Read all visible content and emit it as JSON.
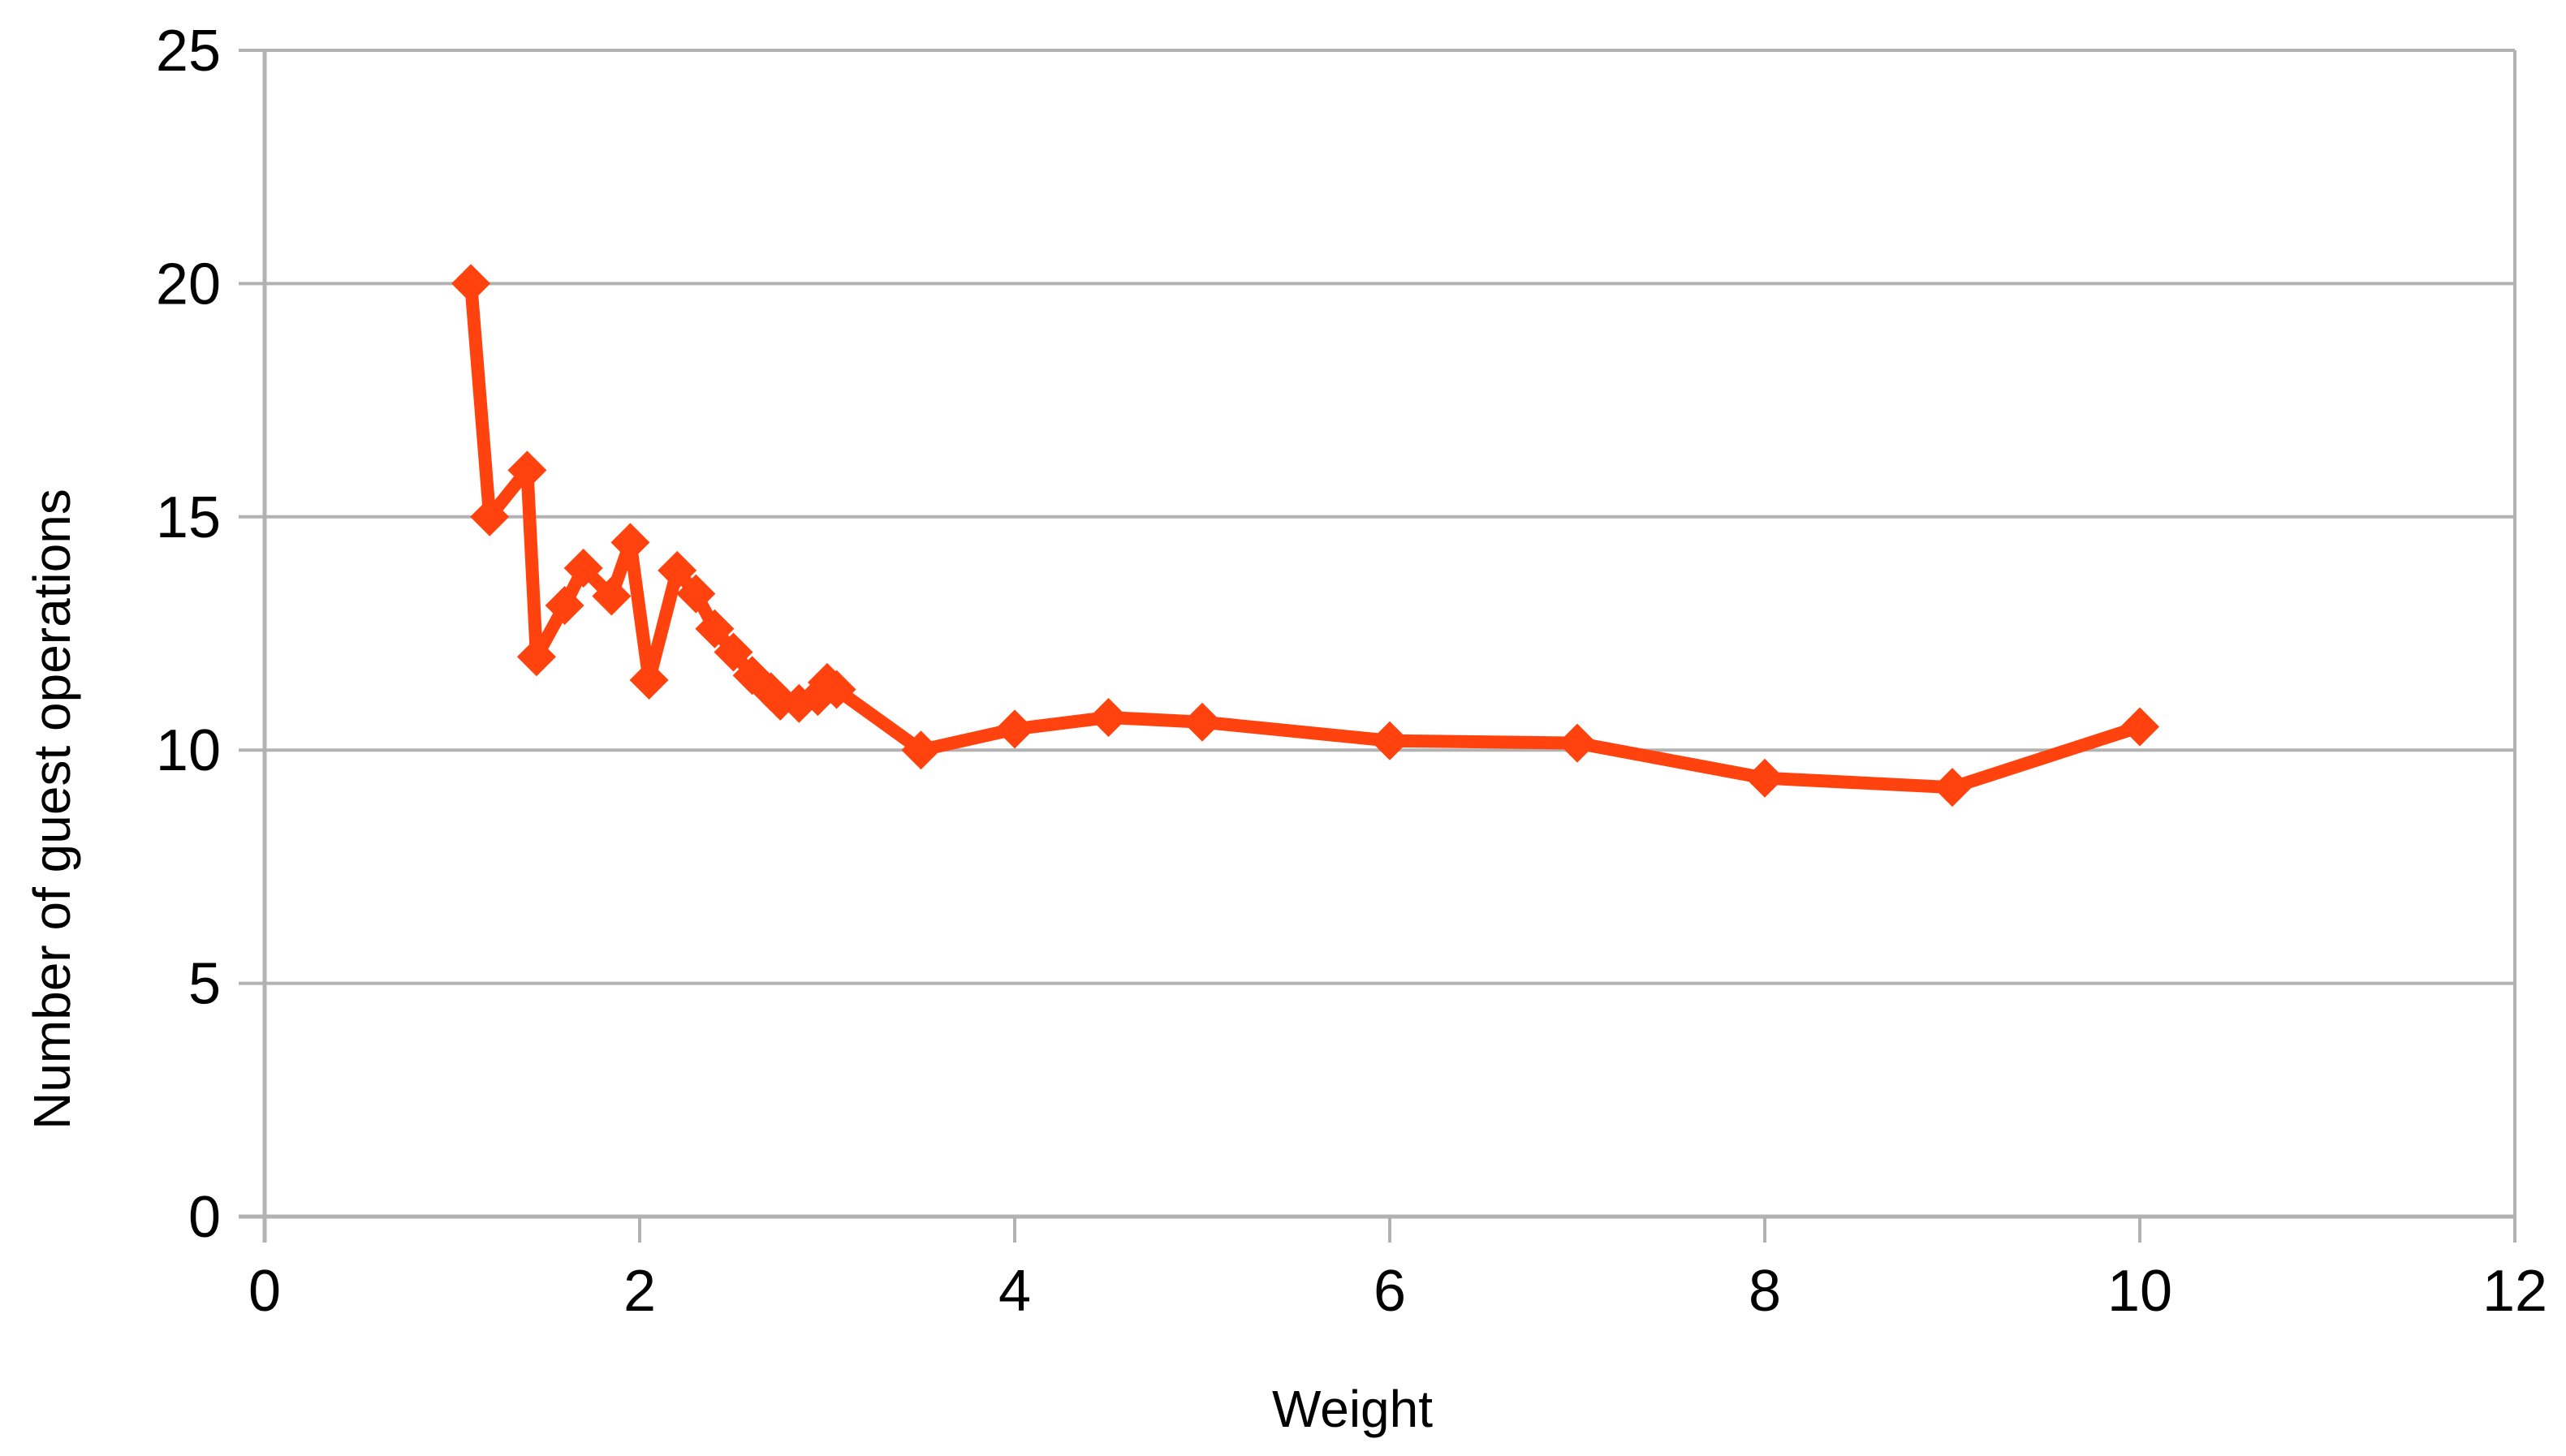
{
  "chart_data": {
    "type": "line",
    "title": "",
    "xlabel": "Weight",
    "ylabel": "Number of guest operations",
    "xlim": [
      0,
      12
    ],
    "ylim": [
      0,
      25
    ],
    "x_ticks": [
      0,
      2,
      4,
      6,
      8,
      10,
      12
    ],
    "y_ticks": [
      0,
      5,
      10,
      15,
      20,
      25
    ],
    "grid": "horizontal-only",
    "legend_position": "none",
    "marker": "diamond",
    "series": [
      {
        "name": "Number of guest operations",
        "color": "#FF420E",
        "points": [
          [
            1.1,
            20.0
          ],
          [
            1.2,
            15.0
          ],
          [
            1.4,
            16.0
          ],
          [
            1.45,
            12.0
          ],
          [
            1.6,
            13.1
          ],
          [
            1.7,
            13.9
          ],
          [
            1.85,
            13.3
          ],
          [
            1.95,
            14.45
          ],
          [
            2.05,
            11.5
          ],
          [
            2.2,
            13.85
          ],
          [
            2.3,
            13.35
          ],
          [
            2.4,
            12.6
          ],
          [
            2.5,
            12.1
          ],
          [
            2.6,
            11.6
          ],
          [
            2.7,
            11.25
          ],
          [
            2.75,
            11.05
          ],
          [
            2.85,
            11.0
          ],
          [
            2.95,
            11.15
          ],
          [
            3.0,
            11.45
          ],
          [
            3.05,
            11.3
          ],
          [
            3.5,
            10.0
          ],
          [
            4.0,
            10.45
          ],
          [
            4.5,
            10.7
          ],
          [
            5.0,
            10.6
          ],
          [
            6.0,
            10.2
          ],
          [
            7.0,
            10.15
          ],
          [
            8.0,
            9.4
          ],
          [
            9.0,
            9.2
          ],
          [
            10.0,
            10.5
          ]
        ]
      }
    ]
  },
  "colors": {
    "background": "#ffffff",
    "gridline": "#b2b2b2",
    "axis": "#b2b2b2",
    "text": "#000000",
    "series": "#FF420E"
  }
}
